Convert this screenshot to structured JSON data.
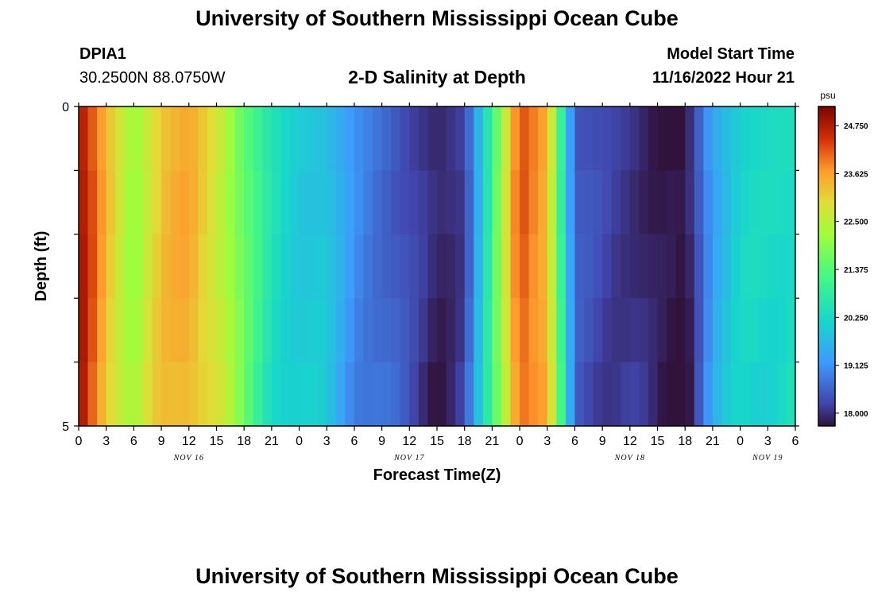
{
  "header": {
    "title": "University of Southern Mississippi Ocean Cube",
    "station_id": "DPIA1",
    "coordinates": "30.2500N  88.0750W",
    "subtitle": "2-D Salinity at Depth",
    "model_start_label": "Model Start Time",
    "model_start_value": "11/16/2022 Hour 21"
  },
  "footer": {
    "title": "University of Southern Mississippi Ocean Cube"
  },
  "chart_data": {
    "type": "heatmap",
    "title": "2-D Salinity at Depth",
    "xlabel": "Forecast Time(Z)",
    "ylabel": "Depth (ft)",
    "x_ticks": [
      "0",
      "3",
      "6",
      "9",
      "12",
      "15",
      "18",
      "21",
      "0",
      "3",
      "6",
      "9",
      "12",
      "15",
      "18",
      "21",
      "0",
      "3",
      "6",
      "9",
      "12",
      "15",
      "18",
      "21",
      "0",
      "3",
      "6"
    ],
    "date_labels": [
      {
        "label": "NOV 16",
        "hour_index": 12
      },
      {
        "label": "NOV 17",
        "hour_index": 36
      },
      {
        "label": "NOV 18",
        "hour_index": 60
      },
      {
        "label": "NOV 19",
        "hour_index": 75
      }
    ],
    "x_range_hours": [
      0,
      78
    ],
    "y_ticks": [
      "0",
      "5"
    ],
    "ylim": [
      0,
      5
    ],
    "colorbar": {
      "unit": "psu",
      "ticks": [
        "24.750",
        "23.625",
        "22.500",
        "21.375",
        "20.250",
        "19.125",
        "18.000"
      ],
      "range": [
        17.7,
        25.2
      ]
    },
    "profile_hours": [
      0,
      3,
      6,
      9,
      12,
      15,
      18,
      21,
      24,
      27,
      30,
      33,
      36,
      39,
      42,
      45,
      48,
      51,
      54,
      57,
      60,
      63,
      66,
      69,
      72,
      75,
      78
    ],
    "surface_salinity": [
      24.9,
      23.4,
      22.1,
      23.2,
      23.6,
      22.8,
      21.5,
      20.5,
      20.0,
      19.8,
      19.1,
      18.7,
      18.2,
      17.9,
      18.2,
      21.0,
      24.3,
      23.5,
      18.4,
      18.3,
      18.1,
      17.7,
      17.7,
      19.4,
      20.1,
      20.3,
      20.4
    ],
    "depth_rows": 5,
    "depth_offsets": [
      0,
      0.35,
      0.5,
      0.6,
      0.75
    ]
  }
}
